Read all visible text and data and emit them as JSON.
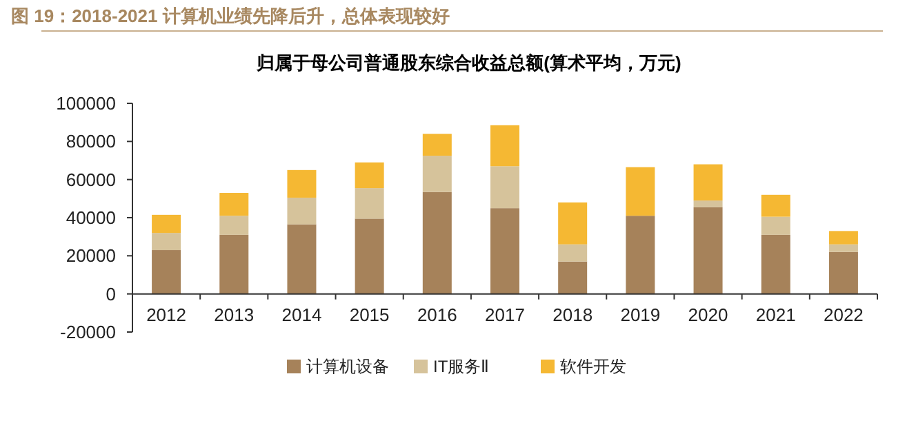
{
  "chart_data": {
    "type": "bar",
    "stacked": true,
    "title": "图 19：2018-2021 计算机业绩先降后升，总体表现较好",
    "subtitle": "归属于母公司普通股东综合收益总额(算术平均，万元)",
    "categories": [
      "2012",
      "2013",
      "2014",
      "2015",
      "2016",
      "2017",
      "2018",
      "2019",
      "2020",
      "2021",
      "2022"
    ],
    "series": [
      {
        "name": "计算机设备",
        "color": "#a6825a",
        "values": [
          23000,
          31000,
          36500,
          39500,
          53500,
          45000,
          17000,
          41000,
          45500,
          31000,
          22000
        ]
      },
      {
        "name": "IT服务Ⅱ",
        "color": "#d6c39b",
        "values": [
          9000,
          10000,
          14000,
          16000,
          19000,
          22000,
          9000,
          0,
          3500,
          9500,
          4000
        ]
      },
      {
        "name": "软件开发",
        "color": "#f5b833",
        "values": [
          9500,
          12000,
          14500,
          13500,
          11500,
          21500,
          22000,
          25500,
          19000,
          11500,
          7000
        ]
      }
    ],
    "ylim": [
      -20000,
      100000
    ],
    "yticks": [
      -20000,
      0,
      20000,
      40000,
      60000,
      80000,
      100000
    ],
    "grid": false,
    "legend": "bottom"
  }
}
